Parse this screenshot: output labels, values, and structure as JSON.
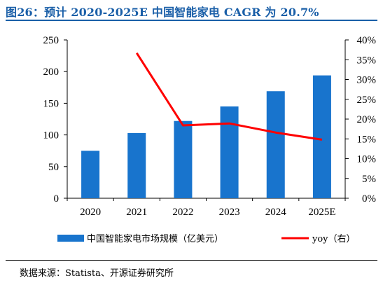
{
  "title": "图26：预计 2020-2025E 中国智能家电 CAGR 为 20.7%",
  "source": "数据来源：Statista、开源证券研究所",
  "chart_data": {
    "type": "bar+line",
    "categories": [
      "2020",
      "2021",
      "2022",
      "2023",
      "2024",
      "2025E"
    ],
    "series": [
      {
        "name": "中国智能家电市场规模（亿美元）",
        "type": "bar",
        "axis": "left",
        "color": "#1874cd",
        "values": [
          75,
          103,
          122,
          145,
          169,
          194
        ]
      },
      {
        "name": "yoy（右）",
        "type": "line",
        "axis": "right",
        "color": "#ff0000",
        "values": [
          null,
          36.7,
          18.4,
          18.9,
          16.6,
          14.8
        ]
      }
    ],
    "left_axis": {
      "min": 0,
      "max": 250,
      "step": 50,
      "ticks": [
        "0",
        "50",
        "100",
        "150",
        "200",
        "250"
      ]
    },
    "right_axis": {
      "min": 0,
      "max": 40,
      "step": 5,
      "ticks": [
        "0%",
        "5%",
        "10%",
        "15%",
        "20%",
        "25%",
        "30%",
        "35%",
        "40%"
      ]
    },
    "legend_position": "bottom",
    "grid": false
  }
}
